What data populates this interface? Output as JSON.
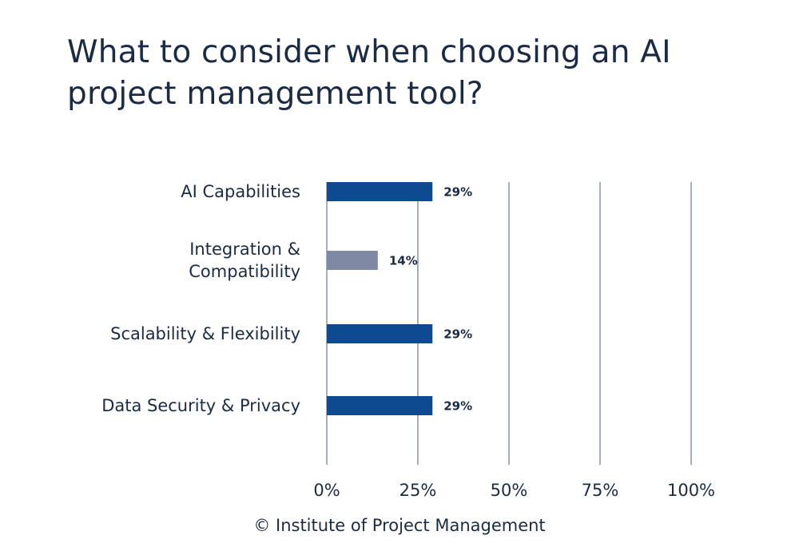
{
  "footer": "© Institute of Project Management",
  "chart_data": {
    "type": "bar",
    "orientation": "horizontal",
    "title": "What to consider when choosing an AI project management tool?",
    "categories": [
      [
        "AI Capabilities"
      ],
      [
        "Integration &",
        "Compatibility"
      ],
      [
        "Scalability & Flexibility"
      ],
      [
        "Data Security & Privacy"
      ]
    ],
    "values": [
      29,
      14,
      29,
      29
    ],
    "value_labels": [
      "29%",
      "14%",
      "29%",
      "29%"
    ],
    "bar_colors": [
      "#0d4a8f",
      "#7f89a3",
      "#0d4a8f",
      "#0d4a8f"
    ],
    "xlim": [
      0,
      100
    ],
    "xticks": [
      0,
      25,
      50,
      75,
      100
    ],
    "xtick_labels": [
      "0%",
      "25%",
      "50%",
      "75%",
      "100%"
    ],
    "grid": "vertical",
    "grid_color": "#8a93aa"
  }
}
